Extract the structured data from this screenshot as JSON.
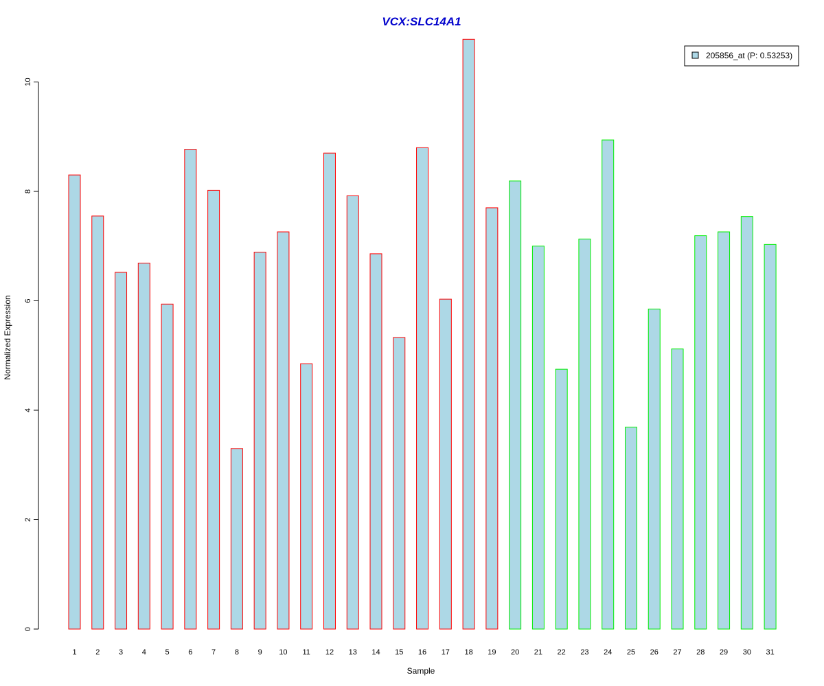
{
  "chart_data": {
    "type": "bar",
    "title": "VCX:SLC14A1",
    "xlabel": "Sample",
    "ylabel": "Normalized Expression",
    "ylim": [
      0,
      10.85
    ],
    "yticks": [
      0,
      2,
      4,
      6,
      8,
      10
    ],
    "grid": false,
    "legend": {
      "label": "205856_at (P: 0.53253)",
      "placement": "top-right"
    },
    "colors": {
      "title": "#0000cc",
      "bar_fill": "#add8e6",
      "group1_border": "#ff0000",
      "group2_border": "#00ee00"
    },
    "categories": [
      "1",
      "2",
      "3",
      "4",
      "5",
      "6",
      "7",
      "8",
      "9",
      "10",
      "11",
      "12",
      "13",
      "14",
      "15",
      "16",
      "17",
      "18",
      "19",
      "20",
      "21",
      "22",
      "23",
      "24",
      "25",
      "26",
      "27",
      "28",
      "29",
      "30",
      "31"
    ],
    "values": [
      8.3,
      7.55,
      6.52,
      6.69,
      5.94,
      8.77,
      8.02,
      3.3,
      6.89,
      7.26,
      4.85,
      8.7,
      7.92,
      6.86,
      5.33,
      8.8,
      6.03,
      10.78,
      7.7,
      8.19,
      7.0,
      4.75,
      7.13,
      8.94,
      3.69,
      5.85,
      5.12,
      7.19,
      7.26,
      7.54,
      7.03
    ],
    "groups": [
      1,
      1,
      1,
      1,
      1,
      1,
      1,
      1,
      1,
      1,
      1,
      1,
      1,
      1,
      1,
      1,
      1,
      1,
      1,
      2,
      2,
      2,
      2,
      2,
      2,
      2,
      2,
      2,
      2,
      2,
      2
    ]
  }
}
